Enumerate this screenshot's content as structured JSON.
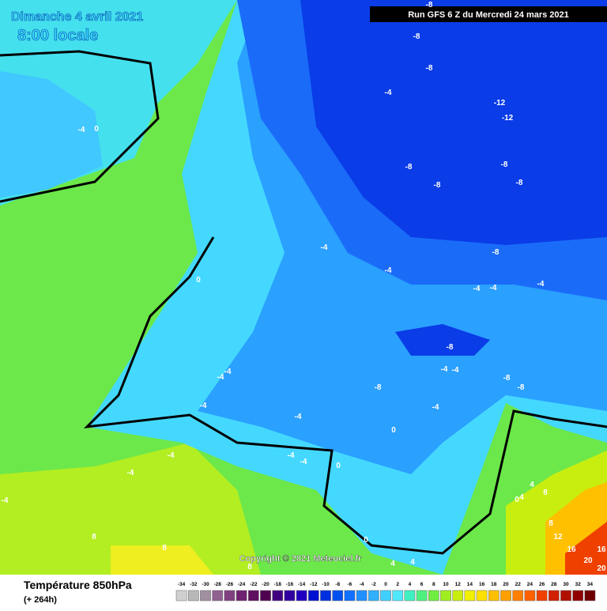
{
  "header": {
    "title": "Dimanche 4 avril 2021",
    "subtitle": "8:00 locale",
    "run": "Run GFS 6 Z du Mercredi 24 mars 2021"
  },
  "copyright": "Copyright © 2021 Meteociel.fr",
  "legend": {
    "title": "Température 850hPa",
    "lead": "(+ 264h)",
    "labels": [
      -34,
      -32,
      -30,
      -28,
      -26,
      -24,
      -22,
      -20,
      -18,
      -16,
      -14,
      -12,
      -10,
      -8,
      -6,
      -4,
      -2,
      0,
      2,
      4,
      6,
      8,
      10,
      12,
      14,
      16,
      18,
      20,
      22,
      24,
      26,
      28,
      30,
      32,
      34
    ],
    "colors": [
      "#d0d0d0",
      "#b8b8b8",
      "#a090a0",
      "#906090",
      "#804080",
      "#702070",
      "#601060",
      "#500050",
      "#400080",
      "#3000a0",
      "#2000c0",
      "#0010d0",
      "#0030e0",
      "#0050f0",
      "#1070ff",
      "#2090ff",
      "#30b0ff",
      "#40d0ff",
      "#50e8ff",
      "#40f0c0",
      "#50f080",
      "#70ee40",
      "#a0ee20",
      "#c8ee10",
      "#f0f000",
      "#ffe000",
      "#ffc000",
      "#ffa000",
      "#ff8000",
      "#ff6000",
      "#f04000",
      "#d02000",
      "#b01000",
      "#900000",
      "#700000"
    ]
  },
  "contour_labels": [
    -8,
    -8,
    -8,
    -4,
    -12,
    -12,
    -8,
    -8,
    -8,
    -8,
    -8,
    -4,
    -4,
    -4,
    -4,
    -4,
    -8,
    -4,
    -4,
    -8,
    -8,
    -8,
    -4,
    -4,
    -4,
    -4,
    -4,
    0,
    -4,
    -4,
    0,
    -4,
    -4,
    -4,
    -4,
    0,
    0,
    0,
    8,
    8,
    8,
    4,
    4,
    4,
    8,
    8,
    12,
    16,
    16,
    20,
    20,
    4,
    0
  ]
}
